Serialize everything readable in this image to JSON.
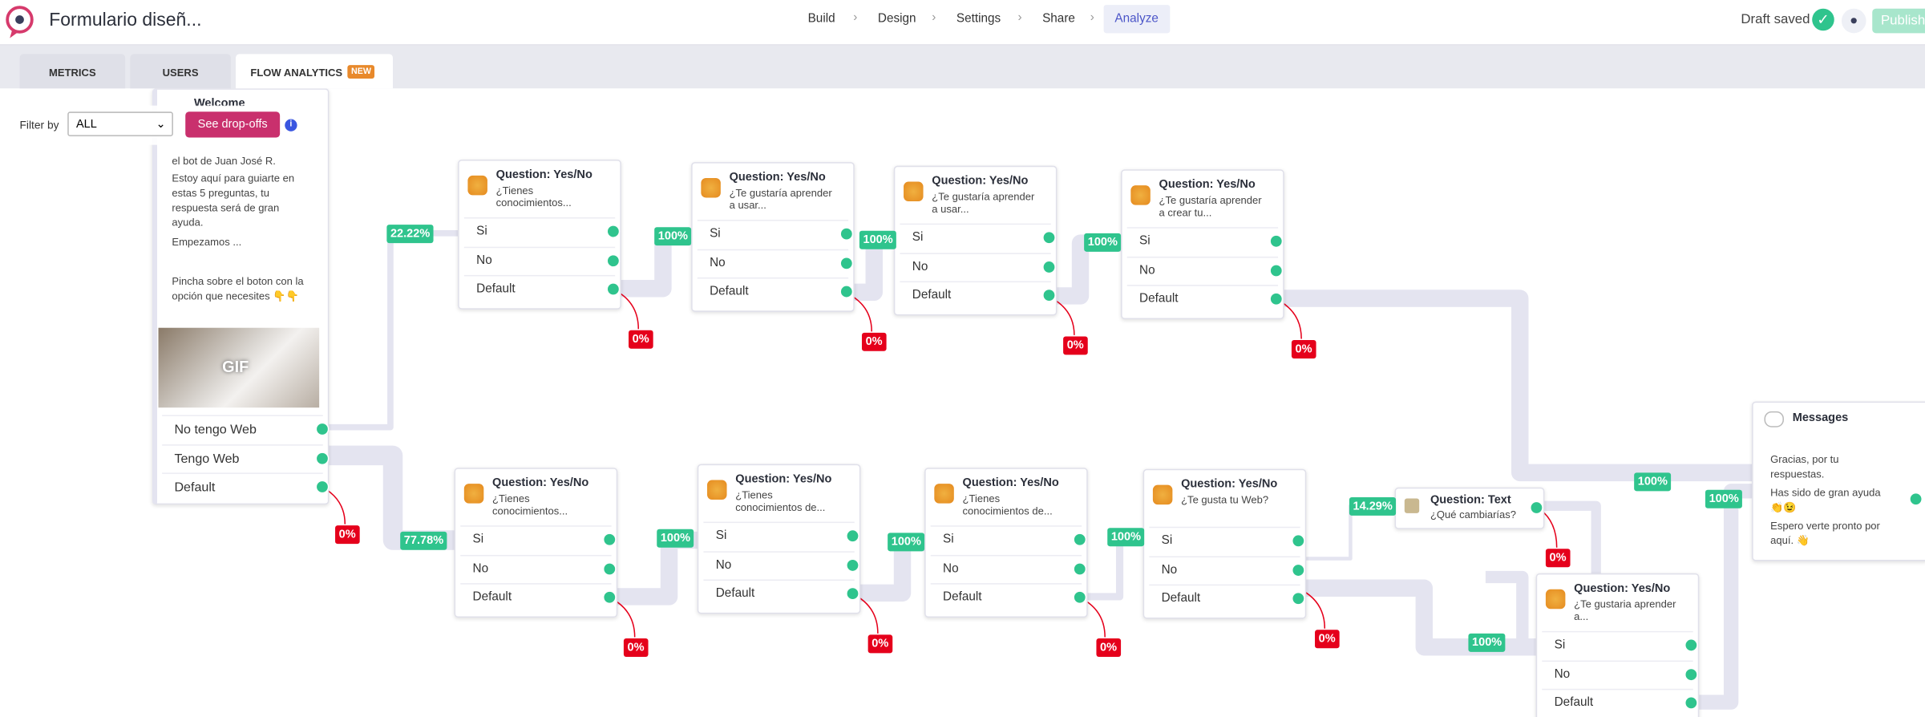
{
  "header": {
    "title": "Formulario diseñ...",
    "nav": [
      "Build",
      "Design",
      "Settings",
      "Share",
      "Analyze"
    ],
    "status": "Draft saved",
    "publish": "Publish"
  },
  "tabs": {
    "items": [
      "METRICS",
      "USERS",
      "FLOW ANALYTICS"
    ],
    "badge": "NEW"
  },
  "filter": {
    "label": "Filter by",
    "value": "ALL",
    "button": "See drop-offs"
  },
  "welcome": {
    "title": "Welcome",
    "lines": [
      "el bot de Juan José R.",
      "Estoy aquí para guiarte en estas 5 preguntas, tu respuesta será de gran ayuda.",
      "Empezamos ...",
      "Pincha sobre el boton con la opción que necesites 👇👇"
    ],
    "gif": "GIF",
    "options": [
      "No tengo Web",
      "Tengo Web",
      "Default"
    ]
  },
  "nodes": [
    {
      "title": "Question: Yes/No",
      "subtitle": "¿Tienes conocimientos...",
      "options": [
        "Si",
        "No",
        "Default"
      ]
    },
    {
      "title": "Question: Yes/No",
      "subtitle": "¿Te gustaría aprender a usar...",
      "options": [
        "Si",
        "No",
        "Default"
      ]
    },
    {
      "title": "Question: Yes/No",
      "subtitle": "¿Te gustaría aprender a usar...",
      "options": [
        "Si",
        "No",
        "Default"
      ]
    },
    {
      "title": "Question: Yes/No",
      "subtitle": "¿Te gustaría aprender a crear tu...",
      "options": [
        "Si",
        "No",
        "Default"
      ]
    },
    {
      "title": "Question: Yes/No",
      "subtitle": "¿Tienes conocimientos...",
      "options": [
        "Si",
        "No",
        "Default"
      ]
    },
    {
      "title": "Question: Yes/No",
      "subtitle": "¿Tienes conocimientos de...",
      "options": [
        "Si",
        "No",
        "Default"
      ]
    },
    {
      "title": "Question: Yes/No",
      "subtitle": "¿Tienes conocimientos de...",
      "options": [
        "Si",
        "No",
        "Default"
      ]
    },
    {
      "title": "Question: Yes/No",
      "subtitle": "¿Te gusta tu Web?",
      "options": [
        "Si",
        "No",
        "Default"
      ]
    },
    {
      "title": "Question: Yes/No",
      "subtitle": "¿Te gustaria aprender a...",
      "options": [
        "Si",
        "No",
        "Default"
      ]
    }
  ],
  "text_node": {
    "title": "Question: Text",
    "subtitle": "¿Qué cambiarías?"
  },
  "messages": {
    "title": "Messages",
    "lines": [
      "Gracias, por tu respuestas.",
      "Has sido de gran ayuda 👏😉",
      "Espero verte pronto por aquí. 👋"
    ]
  },
  "rates": [
    "22.22%",
    "100%",
    "100%",
    "100%",
    "77.78%",
    "100%",
    "100%",
    "100%",
    "14.29%",
    "100%",
    "100%",
    "100%"
  ],
  "dropoffs": [
    "0%",
    "0%",
    "0%",
    "0%",
    "0%",
    "0%",
    "0%",
    "0%",
    "0%",
    "0%"
  ]
}
